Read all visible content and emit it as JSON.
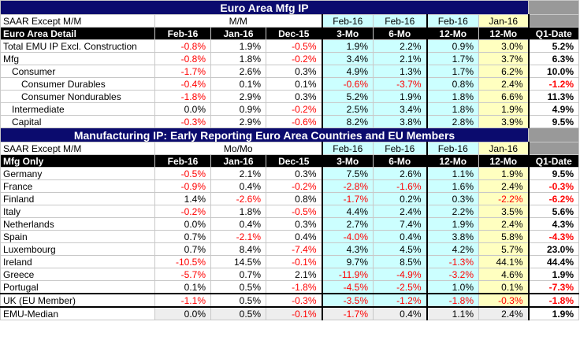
{
  "section1": {
    "title": "Euro Area Mfg IP",
    "hdr1": [
      "SAAR Except M/M",
      "M/M",
      "Feb-16",
      "Feb-16",
      "Feb-16",
      "Jan-16",
      ""
    ],
    "hdr2": [
      "Euro Area Detail",
      "Feb-16",
      "Jan-16",
      "Dec-15",
      "3-Mo",
      "6-Mo",
      "12-Mo",
      "12-Mo",
      "Q1-Date"
    ],
    "rows": [
      {
        "label": "Total EMU IP Excl. Construction",
        "indent": 0,
        "values": [
          "-0.8%",
          "1.9%",
          "-0.5%",
          "1.9%",
          "2.2%",
          "0.9%",
          "3.0%",
          "5.2%"
        ]
      },
      {
        "label": "Mfg",
        "indent": 0,
        "values": [
          "-0.8%",
          "1.8%",
          "-0.2%",
          "3.4%",
          "2.1%",
          "1.7%",
          "3.7%",
          "6.3%"
        ]
      },
      {
        "label": "Consumer",
        "indent": 1,
        "values": [
          "-1.7%",
          "2.6%",
          "0.3%",
          "4.9%",
          "1.3%",
          "1.7%",
          "6.2%",
          "10.0%"
        ]
      },
      {
        "label": "Consumer Durables",
        "indent": 2,
        "values": [
          "-0.4%",
          "0.1%",
          "0.1%",
          "-0.6%",
          "-3.7%",
          "0.8%",
          "2.4%",
          "-1.2%"
        ]
      },
      {
        "label": "Consumer Nondurables",
        "indent": 2,
        "values": [
          "-1.8%",
          "2.9%",
          "0.3%",
          "5.2%",
          "1.9%",
          "1.8%",
          "6.6%",
          "11.3%"
        ]
      },
      {
        "label": "Intermediate",
        "indent": 1,
        "values": [
          "0.0%",
          "0.9%",
          "-0.2%",
          "2.5%",
          "3.4%",
          "1.8%",
          "1.9%",
          "4.9%"
        ]
      },
      {
        "label": "Capital",
        "indent": 1,
        "values": [
          "-0.3%",
          "2.9%",
          "-0.6%",
          "8.2%",
          "3.8%",
          "2.8%",
          "3.9%",
          "9.5%"
        ]
      }
    ]
  },
  "section2": {
    "title": "Manufacturing IP: Early Reporting Euro Area Countries and EU Members",
    "hdr1": [
      "SAAR Except M/M",
      "Mo/Mo",
      "Feb-16",
      "Feb-16",
      "Feb-16",
      "Jan-16",
      ""
    ],
    "hdr2": [
      "Mfg Only",
      "Feb-16",
      "Jan-16",
      "Dec-15",
      "3-Mo",
      "6-Mo",
      "12-Mo",
      "12-Mo",
      "Q1-Date"
    ],
    "rows": [
      {
        "label": "Germany",
        "values": [
          "-0.5%",
          "2.1%",
          "0.3%",
          "7.5%",
          "2.6%",
          "1.1%",
          "1.9%",
          "9.5%"
        ]
      },
      {
        "label": "France",
        "values": [
          "-0.9%",
          "0.4%",
          "-0.2%",
          "-2.8%",
          "-1.6%",
          "1.6%",
          "2.4%",
          "-0.3%"
        ]
      },
      {
        "label": "Finland",
        "values": [
          "1.4%",
          "-2.6%",
          "0.8%",
          "-1.7%",
          "0.2%",
          "0.3%",
          "-2.2%",
          "-6.2%"
        ]
      },
      {
        "label": "Italy",
        "values": [
          "-0.2%",
          "1.8%",
          "-0.5%",
          "4.4%",
          "2.4%",
          "2.2%",
          "3.5%",
          "5.6%"
        ]
      },
      {
        "label": "Netherlands",
        "values": [
          "0.0%",
          "0.4%",
          "0.3%",
          "2.7%",
          "7.4%",
          "1.9%",
          "2.4%",
          "4.3%"
        ]
      },
      {
        "label": "Spain",
        "values": [
          "0.7%",
          "-2.1%",
          "0.4%",
          "-4.0%",
          "0.4%",
          "3.8%",
          "5.8%",
          "-4.3%"
        ]
      },
      {
        "label": "Luxembourg",
        "values": [
          "0.7%",
          "8.4%",
          "-7.4%",
          "4.3%",
          "4.5%",
          "4.2%",
          "5.7%",
          "23.0%"
        ]
      },
      {
        "label": "Ireland",
        "values": [
          "-10.5%",
          "14.5%",
          "-0.1%",
          "9.7%",
          "8.5%",
          "-1.3%",
          "44.1%",
          "44.4%"
        ]
      },
      {
        "label": "Greece",
        "values": [
          "-5.7%",
          "0.7%",
          "2.1%",
          "-11.9%",
          "-4.9%",
          "-3.2%",
          "4.6%",
          "1.9%"
        ]
      },
      {
        "label": "Portugal",
        "values": [
          "0.1%",
          "0.5%",
          "-1.8%",
          "-4.5%",
          "-2.5%",
          "1.0%",
          "0.1%",
          "-7.3%"
        ]
      }
    ],
    "uk": {
      "label": "UK (EU Member)",
      "values": [
        "-1.1%",
        "0.5%",
        "-0.3%",
        "-3.5%",
        "-1.2%",
        "-1.8%",
        "-0.3%",
        "-1.8%"
      ]
    },
    "median": {
      "label": "EMU-Median",
      "values": [
        "0.0%",
        "0.5%",
        "-0.1%",
        "-1.7%",
        "0.4%",
        "1.1%",
        "2.4%",
        "1.9%"
      ]
    }
  },
  "colors": {
    "negative": "#ff0000",
    "title_bg": "#0b0b6e",
    "blue_fill": "#ccffff",
    "yellow_fill": "#ffffc0",
    "gray_fill": "#999999"
  }
}
